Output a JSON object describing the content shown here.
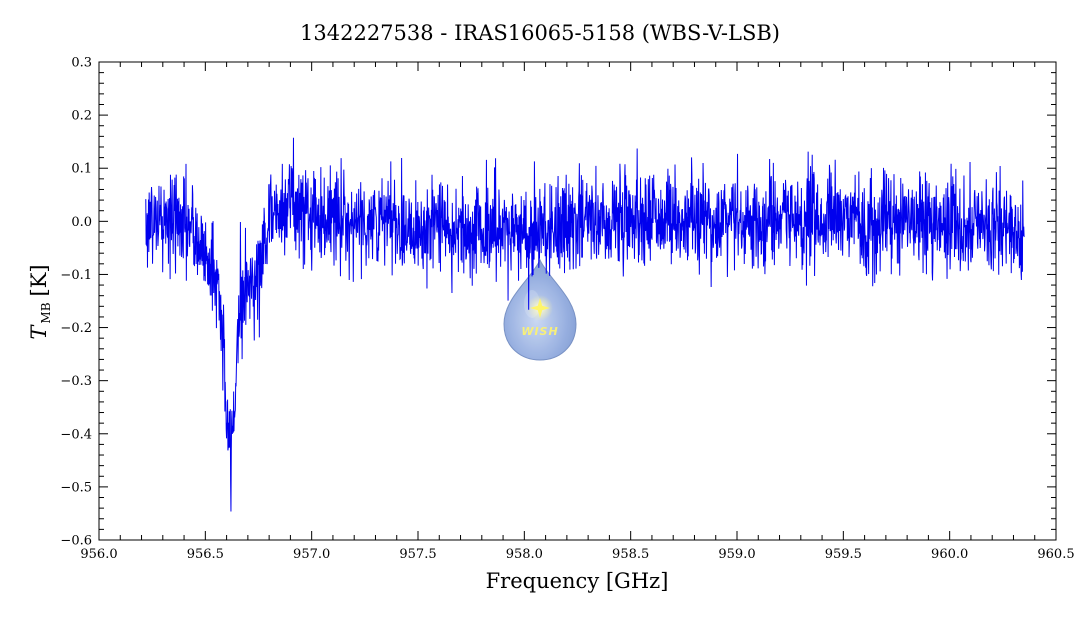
{
  "chart_data": {
    "type": "line",
    "title": "1342227538 - IRAS16065-5158 (WBS-V-LSB)",
    "xlabel": "Frequency [GHz]",
    "ylabel_main": "T",
    "ylabel_sub": "MB",
    "ylabel_unit": "[K]",
    "xlim": [
      956.0,
      960.5
    ],
    "ylim": [
      -0.6,
      0.3
    ],
    "x_ticks": [
      "956.0",
      "956.5",
      "957.0",
      "957.5",
      "958.0",
      "958.5",
      "959.0",
      "959.5",
      "960.0",
      "960.5"
    ],
    "y_ticks": [
      "0.3",
      "0.2",
      "0.1",
      "0.0",
      "-0.1",
      "-0.2",
      "-0.3",
      "-0.4",
      "-0.5",
      "-0.6"
    ],
    "x_tick_values": [
      956.0,
      956.5,
      957.0,
      957.5,
      958.0,
      958.5,
      959.0,
      959.5,
      960.0,
      960.5
    ],
    "y_tick_values": [
      0.3,
      0.2,
      0.1,
      0.0,
      -0.1,
      -0.2,
      -0.3,
      -0.4,
      -0.5,
      -0.6
    ],
    "grid": false,
    "legend": "none",
    "series": [
      {
        "color": "#0000ee",
        "x_start": 956.22,
        "x_end": 960.35,
        "noise_sigma": 0.045,
        "x": [
          956.22,
          956.3,
          956.4,
          956.5,
          956.55,
          956.58,
          956.6,
          956.62,
          956.64,
          956.66,
          956.7,
          956.75,
          956.8,
          956.9,
          957.0,
          957.5,
          958.0,
          958.5,
          959.0,
          959.5,
          960.0,
          960.35
        ],
        "y": [
          0.0,
          0.0,
          0.0,
          -0.06,
          -0.1,
          -0.2,
          -0.38,
          -0.44,
          -0.32,
          -0.15,
          -0.12,
          -0.1,
          0.01,
          0.04,
          0.01,
          -0.01,
          -0.02,
          0.01,
          0.0,
          0.0,
          0.0,
          -0.02
        ]
      }
    ]
  },
  "logo": {
    "text": "WISH",
    "icon": "water-drop-star-logo"
  }
}
